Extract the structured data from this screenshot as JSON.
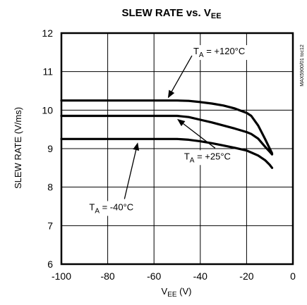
{
  "chart_data": {
    "type": "line",
    "title": "SLEW RATE vs. V",
    "title_sub": "EE",
    "xlabel_main": "V",
    "xlabel_sub": "EE",
    "xlabel_unit": " (V)",
    "ylabel": "SLEW RATE (V/ms)",
    "xlim": [
      -100,
      0
    ],
    "ylim": [
      6,
      12
    ],
    "xticks": [
      -100,
      -80,
      -60,
      -40,
      -20,
      0
    ],
    "yticks": [
      6,
      7,
      8,
      9,
      10,
      11,
      12
    ],
    "xtick_labels": [
      "-100",
      "-80",
      "-60",
      "-40",
      "-20",
      "0"
    ],
    "ytick_labels": [
      "6",
      "7",
      "8",
      "9",
      "10",
      "11",
      "12"
    ],
    "grid": true,
    "code_label": "MAX5900/01 toc12",
    "series": [
      {
        "name": "TA = +120°C",
        "x": [
          -100,
          -80,
          -60,
          -50,
          -45,
          -40,
          -35,
          -30,
          -25,
          -20,
          -18,
          -15,
          -12,
          -10,
          -9
        ],
        "y": [
          10.25,
          10.25,
          10.25,
          10.25,
          10.24,
          10.21,
          10.17,
          10.12,
          10.04,
          9.93,
          9.85,
          9.6,
          9.25,
          9.0,
          8.88
        ]
      },
      {
        "name": "TA = +25°C",
        "x": [
          -100,
          -80,
          -60,
          -50,
          -45,
          -40,
          -35,
          -30,
          -25,
          -20,
          -18,
          -15,
          -12,
          -10,
          -9
        ],
        "y": [
          9.85,
          9.85,
          9.85,
          9.85,
          9.82,
          9.75,
          9.68,
          9.6,
          9.52,
          9.43,
          9.38,
          9.26,
          9.05,
          8.92,
          8.85
        ]
      },
      {
        "name": "TA = -40°C",
        "x": [
          -100,
          -80,
          -60,
          -50,
          -45,
          -40,
          -35,
          -30,
          -25,
          -20,
          -18,
          -15,
          -12,
          -10,
          -9
        ],
        "y": [
          9.25,
          9.25,
          9.25,
          9.25,
          9.23,
          9.19,
          9.14,
          9.08,
          9.02,
          8.95,
          8.9,
          8.82,
          8.7,
          8.58,
          8.5
        ]
      }
    ],
    "annotations": [
      {
        "series": 0,
        "base": "T",
        "sub": "A",
        "rest": " = +120°C",
        "point": [
          -54,
          10.31
        ],
        "text_at": [
          -43,
          11.45
        ]
      },
      {
        "series": 1,
        "base": "T",
        "sub": "A",
        "rest": " = +25°C",
        "point": [
          -50,
          9.77
        ],
        "text_at": [
          -47,
          8.72
        ]
      },
      {
        "series": 2,
        "base": "T",
        "sub": "A",
        "rest": " = -40°C",
        "point": [
          -67,
          9.16
        ],
        "text_at": [
          -88,
          7.4
        ]
      }
    ]
  }
}
